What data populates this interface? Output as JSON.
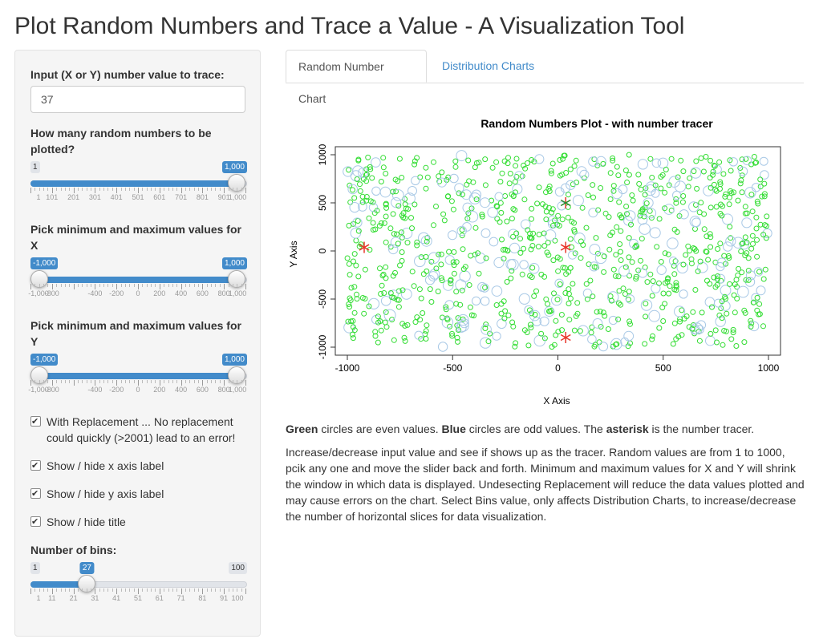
{
  "page": {
    "title": "Plot Random Numbers and Trace a Value - A Visualization Tool"
  },
  "sidebar": {
    "trace_label": "Input (X or Y) number value to trace:",
    "trace_value": "37",
    "count_label": "How many random numbers to be plotted?",
    "count_slider": {
      "min": 1,
      "max": 1000,
      "value": 1000,
      "min_label": "1",
      "max_label": "1,000",
      "value_label": "1,000",
      "ticks": [
        "1",
        "101",
        "201",
        "301",
        "401",
        "501",
        "601",
        "701",
        "801",
        "901",
        "1,000"
      ]
    },
    "x_label": "Pick minimum and maximum values for X",
    "x_slider": {
      "min": -1000,
      "max": 1000,
      "low": -1000,
      "high": 1000,
      "low_label": "-1,000",
      "high_label": "1,000",
      "ticks": [
        "-1,000",
        "-800",
        "-400",
        "-200",
        "0",
        "200",
        "400",
        "600",
        "800",
        "1,000"
      ]
    },
    "y_label": "Pick minimum and maximum values for Y",
    "y_slider": {
      "min": -1000,
      "max": 1000,
      "low": -1000,
      "high": 1000,
      "low_label": "-1,000",
      "high_label": "1,000",
      "ticks": [
        "-1,000",
        "-800",
        "-400",
        "-200",
        "0",
        "200",
        "400",
        "600",
        "800",
        "1,000"
      ]
    },
    "checkboxes": [
      {
        "label": "With Replacement ... No replacement could quickly (>2001) lead to an error!",
        "checked": true
      },
      {
        "label": "Show / hide x axis label",
        "checked": true
      },
      {
        "label": "Show / hide y axis label",
        "checked": true
      },
      {
        "label": "Show / hide title",
        "checked": true
      }
    ],
    "bins_label": "Number of bins:",
    "bins_slider": {
      "min": 1,
      "max": 100,
      "value": 27,
      "min_label": "1",
      "max_label": "100",
      "value_label": "27",
      "ticks": [
        "1",
        "11",
        "21",
        "31",
        "41",
        "51",
        "61",
        "71",
        "81",
        "91",
        "100"
      ]
    }
  },
  "tabs": [
    {
      "label": "Random Number Chart",
      "active": true
    },
    {
      "label": "Distribution Charts",
      "active": false
    }
  ],
  "chart_data": {
    "type": "scatter",
    "title": "Random Numbers Plot - with number tracer",
    "xlabel": "X Axis",
    "ylabel": "Y Axis",
    "xlim": [
      -1000,
      1000
    ],
    "ylim": [
      -1000,
      1000
    ],
    "x_ticks": [
      "-1000",
      "-500",
      "0",
      "500",
      "1000"
    ],
    "y_ticks": [
      "-1000",
      "-500",
      "0",
      "500",
      "1000"
    ],
    "point_count": 1000,
    "colors": {
      "even": "#33dd33",
      "odd": "#a9c9e6",
      "tracer": "#e8352a",
      "tracer_mixed": "#2e8b2e"
    },
    "tracer_points": [
      {
        "x": 37,
        "y": 500
      },
      {
        "x": 37,
        "y": 37
      },
      {
        "x": 37,
        "y": -900
      },
      {
        "x": -920,
        "y": 37
      }
    ]
  },
  "info": {
    "line1_green": "Green",
    "line1_a": " circles are even values. ",
    "line1_blue": "Blue",
    "line1_b": " circles are odd values. The ",
    "line1_asterisk": "asterisk",
    "line1_c": " is the number tracer.",
    "paragraph": "Increase/decrease input value and see if shows up as the tracer. Random values are from 1 to 1000, pcik any one and move the slider back and forth. Minimum and maximum values for X and Y will shrink the window in which data is displayed. Undesecting Replacement will reduce the data values plotted and may cause errors on the chart. Select Bins value, only affects Distribution Charts, to increase/decrease the number of horizontal slices for data visualization."
  }
}
